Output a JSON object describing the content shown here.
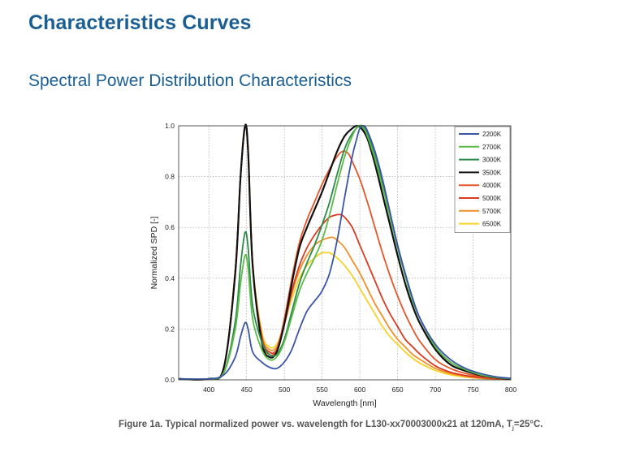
{
  "page": {
    "title": "Characteristics Curves",
    "subtitle": "Spectral Power Distribution Characteristics",
    "caption_prefix": "Figure 1a. Typical normalized power vs. wavelength for L130-xx70003000x21 at 120mA, T",
    "caption_sub": "j",
    "caption_suffix": "=25°C."
  },
  "chart_data": {
    "type": "line",
    "title": "",
    "xlabel": "Wavelength [nm]",
    "ylabel": "Normalized SPD [-]",
    "xlim": [
      360,
      800
    ],
    "ylim": [
      0,
      1.0
    ],
    "xticks": [
      400,
      450,
      500,
      550,
      600,
      650,
      700,
      750,
      800
    ],
    "yticks": [
      0.0,
      0.2,
      0.4,
      0.6,
      0.8,
      1.0
    ],
    "ytick_labels": [
      "0.0",
      "0.2",
      "0.4",
      "0.6",
      "0.8",
      "1.0"
    ],
    "grid": true,
    "legend_position": "top-right",
    "series": [
      {
        "name": "2200K",
        "color": "#3a55a8",
        "x": [
          360,
          400,
          420,
          435,
          442,
          448,
          452,
          458,
          470,
          480,
          490,
          500,
          510,
          520,
          530,
          540,
          550,
          560,
          570,
          580,
          590,
          596,
          600,
          605,
          610,
          620,
          630,
          640,
          650,
          660,
          670,
          680,
          700,
          720,
          740,
          760,
          780,
          800
        ],
        "y": [
          0.004,
          0.004,
          0.02,
          0.09,
          0.17,
          0.225,
          0.2,
          0.11,
          0.07,
          0.05,
          0.045,
          0.07,
          0.12,
          0.2,
          0.27,
          0.31,
          0.35,
          0.42,
          0.55,
          0.72,
          0.88,
          0.95,
          0.99,
          1.0,
          0.98,
          0.9,
          0.79,
          0.66,
          0.53,
          0.42,
          0.32,
          0.24,
          0.14,
          0.08,
          0.045,
          0.025,
          0.012,
          0.006
        ]
      },
      {
        "name": "2700K",
        "color": "#5cba47",
        "x": [
          360,
          400,
          420,
          435,
          442,
          448,
          452,
          458,
          470,
          480,
          490,
          500,
          510,
          520,
          530,
          540,
          550,
          560,
          570,
          580,
          590,
          598,
          605,
          610,
          620,
          630,
          640,
          650,
          660,
          670,
          680,
          700,
          720,
          740,
          760,
          780,
          800
        ],
        "y": [
          0.004,
          0.004,
          0.03,
          0.2,
          0.38,
          0.49,
          0.44,
          0.24,
          0.12,
          0.08,
          0.09,
          0.15,
          0.25,
          0.35,
          0.42,
          0.48,
          0.55,
          0.65,
          0.77,
          0.88,
          0.96,
          1.0,
          0.99,
          0.96,
          0.87,
          0.76,
          0.64,
          0.52,
          0.41,
          0.31,
          0.24,
          0.13,
          0.07,
          0.04,
          0.02,
          0.01,
          0.005
        ]
      },
      {
        "name": "3000K",
        "color": "#2a8a48",
        "x": [
          360,
          400,
          420,
          435,
          442,
          448,
          452,
          458,
          470,
          480,
          490,
          500,
          510,
          520,
          530,
          540,
          550,
          560,
          570,
          580,
          590,
          600,
          605,
          610,
          620,
          630,
          640,
          650,
          660,
          670,
          680,
          700,
          720,
          740,
          760,
          780,
          800
        ],
        "y": [
          0.004,
          0.004,
          0.03,
          0.23,
          0.45,
          0.58,
          0.52,
          0.29,
          0.15,
          0.1,
          0.1,
          0.16,
          0.27,
          0.38,
          0.46,
          0.53,
          0.61,
          0.7,
          0.81,
          0.91,
          0.97,
          1.0,
          0.995,
          0.97,
          0.88,
          0.77,
          0.65,
          0.53,
          0.42,
          0.32,
          0.24,
          0.13,
          0.07,
          0.04,
          0.02,
          0.01,
          0.005
        ]
      },
      {
        "name": "3500K",
        "color": "#111111",
        "x": [
          360,
          400,
          420,
          435,
          442,
          448,
          452,
          458,
          470,
          480,
          490,
          500,
          510,
          520,
          530,
          540,
          550,
          560,
          570,
          580,
          590,
          596,
          602,
          610,
          620,
          630,
          640,
          650,
          660,
          670,
          680,
          700,
          720,
          740,
          760,
          780,
          800
        ],
        "y": [
          0.004,
          0.004,
          0.05,
          0.42,
          0.8,
          1.0,
          0.9,
          0.45,
          0.15,
          0.09,
          0.11,
          0.22,
          0.38,
          0.52,
          0.6,
          0.67,
          0.74,
          0.82,
          0.9,
          0.96,
          0.99,
          1.0,
          0.99,
          0.95,
          0.85,
          0.73,
          0.61,
          0.49,
          0.38,
          0.29,
          0.22,
          0.12,
          0.06,
          0.035,
          0.018,
          0.009,
          0.004
        ]
      },
      {
        "name": "4000K",
        "color": "#e8542a",
        "x": [
          360,
          400,
          420,
          435,
          442,
          448,
          452,
          458,
          470,
          480,
          490,
          500,
          510,
          520,
          530,
          540,
          550,
          560,
          570,
          578,
          585,
          590,
          600,
          610,
          620,
          630,
          640,
          650,
          660,
          670,
          680,
          700,
          720,
          740,
          760,
          780,
          800
        ],
        "y": [
          0.004,
          0.004,
          0.05,
          0.43,
          0.8,
          1.0,
          0.9,
          0.45,
          0.16,
          0.1,
          0.12,
          0.24,
          0.4,
          0.54,
          0.63,
          0.7,
          0.77,
          0.83,
          0.88,
          0.9,
          0.89,
          0.86,
          0.79,
          0.7,
          0.6,
          0.5,
          0.41,
          0.33,
          0.26,
          0.2,
          0.15,
          0.08,
          0.045,
          0.025,
          0.013,
          0.007,
          0.003
        ]
      },
      {
        "name": "5000K",
        "color": "#d93a20",
        "x": [
          360,
          400,
          420,
          435,
          442,
          448,
          452,
          458,
          470,
          480,
          490,
          500,
          510,
          520,
          530,
          540,
          550,
          560,
          570,
          575,
          580,
          590,
          600,
          610,
          620,
          630,
          640,
          650,
          660,
          670,
          680,
          700,
          720,
          740,
          760,
          780,
          800
        ],
        "y": [
          0.004,
          0.004,
          0.05,
          0.43,
          0.8,
          1.0,
          0.9,
          0.45,
          0.17,
          0.11,
          0.12,
          0.22,
          0.35,
          0.45,
          0.52,
          0.57,
          0.61,
          0.64,
          0.65,
          0.65,
          0.64,
          0.6,
          0.53,
          0.46,
          0.39,
          0.32,
          0.26,
          0.21,
          0.16,
          0.13,
          0.1,
          0.055,
          0.03,
          0.017,
          0.009,
          0.005,
          0.002
        ]
      },
      {
        "name": "5700K",
        "color": "#f0902a",
        "x": [
          360,
          400,
          420,
          435,
          442,
          448,
          452,
          458,
          470,
          480,
          490,
          500,
          510,
          520,
          530,
          540,
          550,
          560,
          565,
          570,
          580,
          590,
          600,
          610,
          620,
          630,
          640,
          650,
          660,
          670,
          680,
          700,
          720,
          740,
          760,
          780,
          800
        ],
        "y": [
          0.004,
          0.004,
          0.05,
          0.43,
          0.8,
          1.0,
          0.9,
          0.46,
          0.18,
          0.12,
          0.13,
          0.22,
          0.34,
          0.43,
          0.49,
          0.53,
          0.55,
          0.56,
          0.56,
          0.55,
          0.52,
          0.47,
          0.42,
          0.36,
          0.3,
          0.25,
          0.2,
          0.16,
          0.13,
          0.1,
          0.08,
          0.045,
          0.025,
          0.014,
          0.007,
          0.004,
          0.002
        ]
      },
      {
        "name": "6500K",
        "color": "#f7d22a",
        "x": [
          360,
          400,
          420,
          435,
          442,
          448,
          452,
          458,
          470,
          480,
          490,
          500,
          510,
          520,
          530,
          540,
          550,
          555,
          560,
          570,
          580,
          590,
          600,
          610,
          620,
          630,
          640,
          650,
          660,
          670,
          680,
          700,
          720,
          740,
          760,
          780,
          800
        ],
        "y": [
          0.004,
          0.004,
          0.05,
          0.43,
          0.8,
          1.0,
          0.9,
          0.46,
          0.19,
          0.13,
          0.14,
          0.22,
          0.32,
          0.4,
          0.45,
          0.48,
          0.5,
          0.5,
          0.5,
          0.48,
          0.45,
          0.41,
          0.36,
          0.31,
          0.26,
          0.21,
          0.17,
          0.14,
          0.11,
          0.085,
          0.065,
          0.037,
          0.02,
          0.011,
          0.006,
          0.003,
          0.001
        ]
      }
    ]
  }
}
